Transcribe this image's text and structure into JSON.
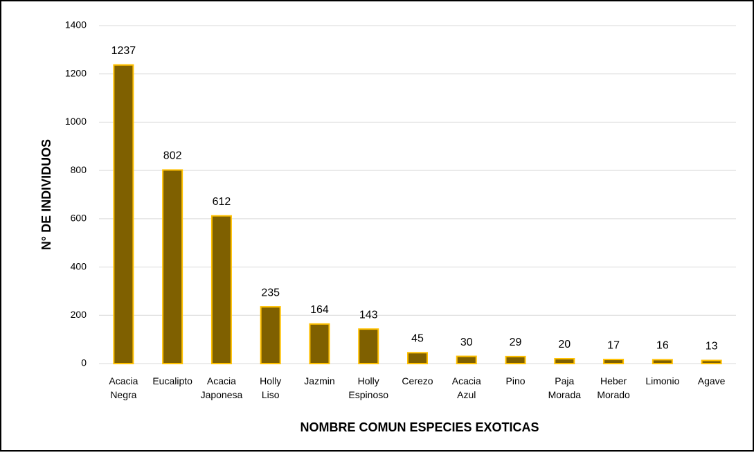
{
  "chart_data": {
    "type": "bar",
    "xlabel": "NOMBRE COMUN ESPECIES EXOTICAS",
    "ylabel": "N° DE INDIVIDUOS",
    "categories": [
      "Acacia Negra",
      "Eucalipto",
      "Acacia Japonesa",
      "Holly Liso",
      "Jazmin",
      "Holly Espinoso",
      "Cerezo",
      "Acacia Azul",
      "Pino",
      "Paja Morada",
      "Heber Morado",
      "Limonio",
      "Agave"
    ],
    "values": [
      1237,
      802,
      612,
      235,
      164,
      143,
      45,
      30,
      29,
      20,
      17,
      16,
      13
    ],
    "color": "#7f6000",
    "edgecolor": "#ffc000",
    "ylim": [
      0,
      1400
    ],
    "yticks": [
      0,
      200,
      400,
      600,
      800,
      1000,
      1200,
      1400
    ],
    "grid": true
  }
}
